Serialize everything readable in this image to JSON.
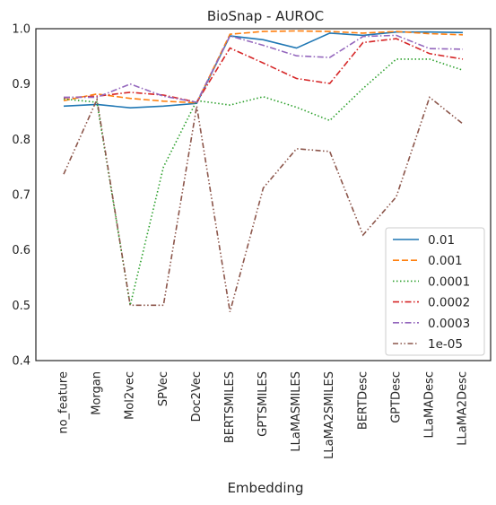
{
  "chart_data": {
    "type": "line",
    "title": "BioSnap - AUROC",
    "xlabel": "Embedding",
    "ylabel": "",
    "ylim": [
      0.4,
      1.0
    ],
    "yticks": [
      0.4,
      0.5,
      0.6,
      0.7,
      0.8,
      0.9,
      1.0
    ],
    "ytick_labels": [
      "0.4",
      "0.5",
      "0.6",
      "0.7",
      "0.8",
      "0.9",
      "1.0"
    ],
    "grid": false,
    "legend_position": "lower-right",
    "categories": [
      "no_feature",
      "Morgan",
      "Mol2vec",
      "SPVec",
      "Doc2Vec",
      "BERTSMILES",
      "GPTSMILES",
      "LLaMASMILES",
      "LLaMA2SMILES",
      "BERTDesc",
      "GPTDesc",
      "LLaMADesc",
      "LLaMA2Desc"
    ],
    "series": [
      {
        "name": "0.01",
        "color": "#1f77b4",
        "dash": "solid",
        "values": [
          0.86,
          0.863,
          0.857,
          0.86,
          0.865,
          0.987,
          0.98,
          0.965,
          0.992,
          0.988,
          0.994,
          0.994,
          0.993
        ]
      },
      {
        "name": "0.001",
        "color": "#ff7f0e",
        "dash": "dashed",
        "values": [
          0.87,
          0.882,
          0.874,
          0.869,
          0.866,
          0.99,
          0.995,
          0.996,
          0.995,
          0.992,
          0.995,
          0.991,
          0.989
        ]
      },
      {
        "name": "0.0001",
        "color": "#2ca02c",
        "dash": "dotted",
        "values": [
          0.873,
          0.867,
          0.5,
          0.75,
          0.87,
          0.862,
          0.877,
          0.858,
          0.834,
          0.892,
          0.945,
          0.945,
          0.925
        ]
      },
      {
        "name": "0.0002",
        "color": "#d62728",
        "dash": "dashdot",
        "values": [
          0.875,
          0.878,
          0.885,
          0.88,
          0.867,
          0.965,
          0.938,
          0.91,
          0.901,
          0.975,
          0.982,
          0.955,
          0.945
        ]
      },
      {
        "name": "0.0003",
        "color": "#9467bd",
        "dash": "dashdot",
        "values": [
          0.876,
          0.876,
          0.9,
          0.878,
          0.867,
          0.987,
          0.97,
          0.951,
          0.948,
          0.986,
          0.988,
          0.964,
          0.963
        ]
      },
      {
        "name": "1e-05",
        "color": "#8c564b",
        "dash": "dashdotdot",
        "values": [
          0.737,
          0.872,
          0.5,
          0.5,
          0.86,
          0.488,
          0.712,
          0.783,
          0.778,
          0.627,
          0.696,
          0.876,
          0.828
        ]
      }
    ]
  }
}
